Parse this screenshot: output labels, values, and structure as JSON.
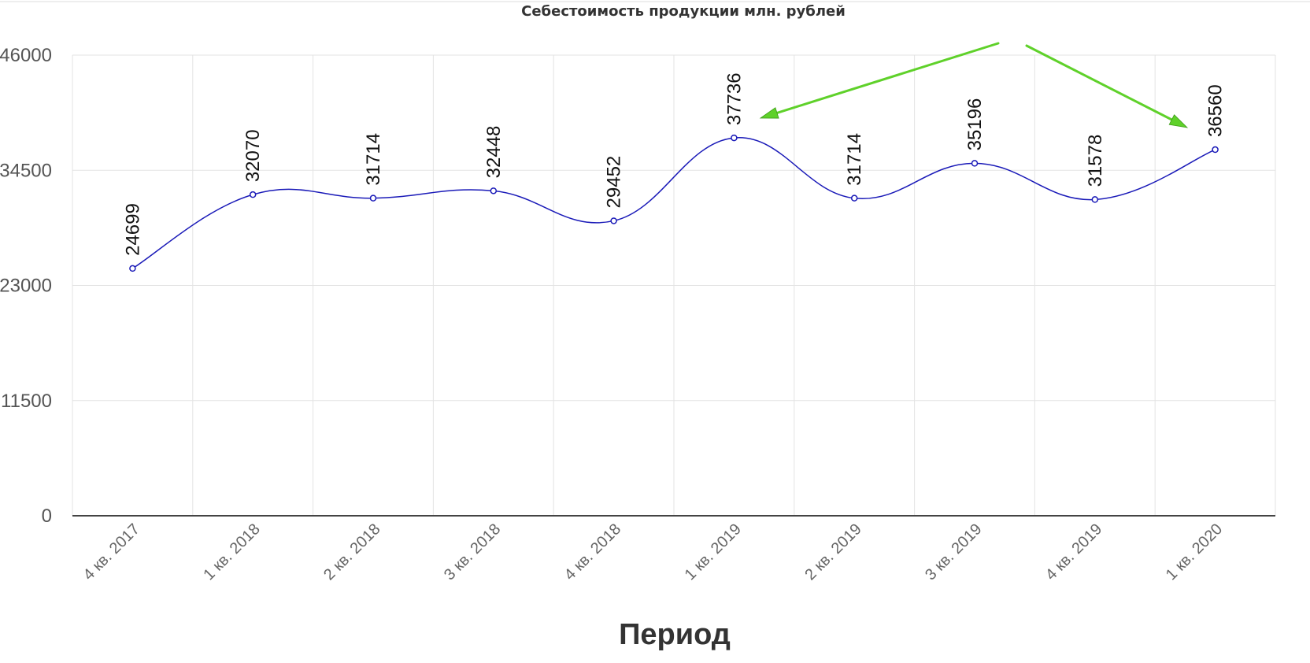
{
  "chart_data": {
    "type": "line",
    "title": "Себестоимость продукции млн. рублей",
    "xlabel": "Период",
    "ylabel": "",
    "categories": [
      "4 кв. 2017",
      "1 кв. 2018",
      "2 кв. 2018",
      "3 кв. 2018",
      "4 кв. 2018",
      "1 кв. 2019",
      "2 кв. 2019",
      "3 кв. 2019",
      "4 кв. 2019",
      "1 кв. 2020"
    ],
    "series": [
      {
        "values": [
          24699,
          32070,
          31714,
          32448,
          29452,
          37736,
          31714,
          35196,
          31578,
          36560
        ]
      }
    ],
    "value_labels": [
      "24699",
      "32070",
      "31714",
      "32448",
      "29452",
      "37736",
      "31714",
      "35196",
      "31578",
      "36560"
    ],
    "ylim": [
      0,
      46000
    ],
    "yticks": [
      "0",
      "11500",
      "23000",
      "34500",
      "46000"
    ],
    "grid": true,
    "legend": "none",
    "line_color": "#1a1ab8",
    "arrow_color": "#5fd12a",
    "annotations": [
      {
        "type": "arrow",
        "points_to": "1 кв. 2019"
      },
      {
        "type": "arrow",
        "points_to": "1 кв. 2020"
      }
    ]
  }
}
